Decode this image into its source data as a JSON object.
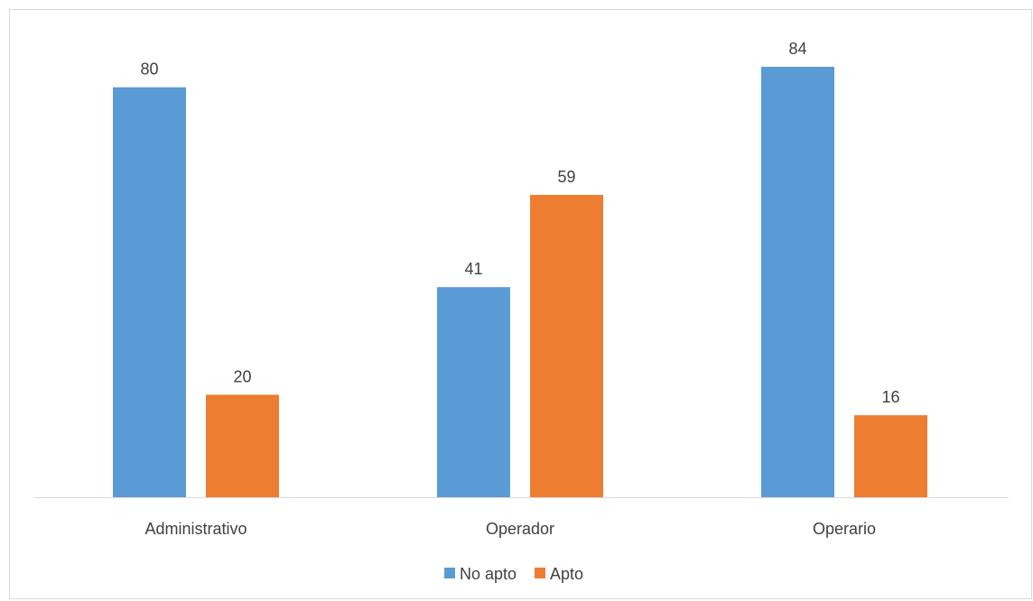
{
  "chart_data": {
    "type": "bar",
    "categories": [
      "Administrativo",
      "Operador",
      "Operario"
    ],
    "series": [
      {
        "name": "No apto",
        "values": [
          80,
          41,
          84
        ],
        "color": "#5b9bd5"
      },
      {
        "name": "Apto",
        "values": [
          20,
          59,
          16
        ],
        "color": "#ed7d31"
      }
    ],
    "title": "",
    "xlabel": "",
    "ylabel": "",
    "ylim": [
      0,
      84
    ],
    "grid": false,
    "legend_position": "bottom",
    "show_data_labels": true,
    "axis_color": "#d9d9d9",
    "text_color": "#404040"
  }
}
